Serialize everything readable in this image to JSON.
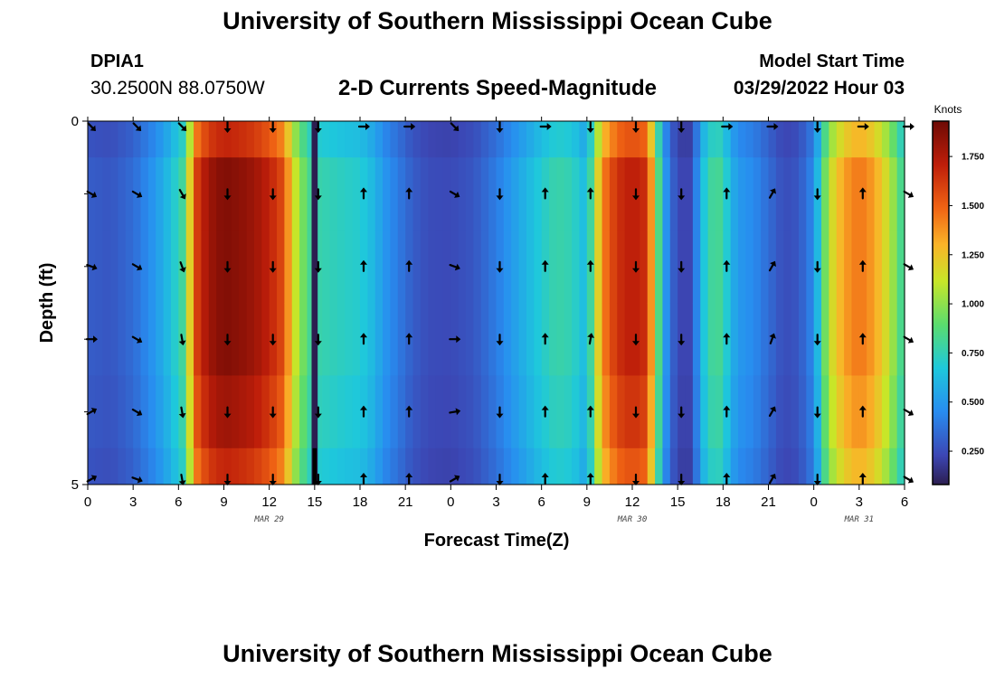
{
  "title": "University of Southern Mississippi Ocean Cube",
  "footer_title": "University of Southern Mississippi Ocean Cube",
  "station": {
    "id": "DPIA1",
    "coords": "30.2500N  88.0750W"
  },
  "subtitle": "2-D Currents Speed-Magnitude",
  "model_start": {
    "label": "Model Start Time",
    "value": "03/29/2022 Hour 03"
  },
  "chart_data": {
    "type": "heatmap",
    "title": "2-D Currents Speed-Magnitude",
    "xlabel": "Forecast Time(Z)",
    "ylabel": "Depth (ft)",
    "colorbar_label": "Knots",
    "colorbar_range": [
      0.08,
      1.93
    ],
    "colorbar_ticks": [
      0.25,
      0.5,
      0.75,
      1.0,
      1.25,
      1.5,
      1.75
    ],
    "colorbar_tick_labels": [
      "0.250",
      "0.500",
      "0.750",
      "1.000",
      "1.250",
      "1.500",
      "1.750"
    ],
    "xlim": [
      0,
      54
    ],
    "ylim": [
      0,
      5
    ],
    "x_ticks": [
      0,
      3,
      6,
      9,
      12,
      15,
      18,
      21,
      24,
      27,
      30,
      33,
      36,
      39,
      42,
      45,
      48,
      51,
      54
    ],
    "x_tick_labels": [
      "0",
      "3",
      "6",
      "9",
      "12",
      "15",
      "18",
      "21",
      "0",
      "3",
      "6",
      "9",
      "12",
      "15",
      "18",
      "21",
      "0",
      "3",
      "6"
    ],
    "y_ticks": [
      0,
      5
    ],
    "y_tick_labels": [
      "0",
      "5"
    ],
    "date_labels": [
      {
        "x": 12,
        "text": "MAR 29"
      },
      {
        "x": 36,
        "text": "MAR 30"
      },
      {
        "x": 51,
        "text": "MAR 31"
      }
    ],
    "depth_edges": [
      0,
      0.5,
      1.5,
      2.5,
      3.5,
      4.5,
      5
    ],
    "depth_profile": [
      0.9,
      1.0,
      1.0,
      1.0,
      0.96,
      0.9
    ],
    "speed_time_hours": [
      0,
      1.5,
      3,
      4.5,
      5.5,
      6.5,
      7,
      8,
      9,
      10,
      11,
      12,
      13,
      13.5,
      14.5,
      15,
      16,
      17,
      18,
      19,
      19.5,
      20.5,
      21.5,
      22.5,
      24,
      25.5,
      27,
      28.5,
      30,
      31,
      32,
      33,
      34,
      35,
      36,
      37,
      37.5,
      38,
      38.5,
      39,
      39.5,
      40,
      40.5,
      41,
      41.5,
      42,
      42.5,
      43,
      44,
      45,
      46,
      47,
      48,
      49,
      50,
      51,
      52,
      53,
      54
    ],
    "speed_knots": [
      0.3,
      0.28,
      0.35,
      0.5,
      0.65,
      0.85,
      1.55,
      1.8,
      1.88,
      1.85,
      1.8,
      1.7,
      1.55,
      1.2,
      0.85,
      0.78,
      0.75,
      0.72,
      0.7,
      0.6,
      0.5,
      0.4,
      0.3,
      0.25,
      0.24,
      0.28,
      0.4,
      0.55,
      0.7,
      0.78,
      0.75,
      0.6,
      1.4,
      1.65,
      1.72,
      1.65,
      1.1,
      0.6,
      0.35,
      0.25,
      0.2,
      0.25,
      0.6,
      0.75,
      0.85,
      0.78,
      0.6,
      0.5,
      0.45,
      0.35,
      0.25,
      0.28,
      0.45,
      1.1,
      1.35,
      1.45,
      1.35,
      1.1,
      0.75
    ],
    "dark_band": {
      "x_start": 14.8,
      "x_end": 15.2,
      "value_knots": 0.08
    },
    "vector_times": [
      0,
      3,
      6,
      9,
      12,
      15,
      18,
      21,
      24,
      27,
      30,
      33,
      36,
      39,
      42,
      45,
      48,
      51,
      54
    ],
    "vector_depths": [
      0,
      1,
      2,
      3,
      4,
      5
    ],
    "vector_directions_deg": [
      [
        135,
        135,
        135,
        180,
        180,
        180,
        90,
        90,
        135,
        180,
        90,
        180,
        180,
        180,
        90,
        90,
        180,
        90,
        90
      ],
      [
        120,
        120,
        150,
        180,
        180,
        180,
        0,
        0,
        120,
        180,
        0,
        0,
        180,
        180,
        0,
        30,
        180,
        0,
        120
      ],
      [
        110,
        120,
        160,
        180,
        180,
        180,
        0,
        0,
        110,
        180,
        0,
        0,
        180,
        180,
        0,
        30,
        180,
        0,
        120
      ],
      [
        90,
        120,
        170,
        180,
        180,
        180,
        0,
        0,
        90,
        180,
        0,
        10,
        180,
        180,
        0,
        20,
        180,
        0,
        120
      ],
      [
        60,
        120,
        170,
        180,
        180,
        180,
        0,
        0,
        80,
        180,
        0,
        0,
        180,
        180,
        0,
        30,
        180,
        0,
        120
      ],
      [
        60,
        110,
        170,
        180,
        180,
        180,
        0,
        0,
        60,
        180,
        0,
        0,
        180,
        180,
        0,
        30,
        180,
        0,
        120
      ]
    ]
  }
}
